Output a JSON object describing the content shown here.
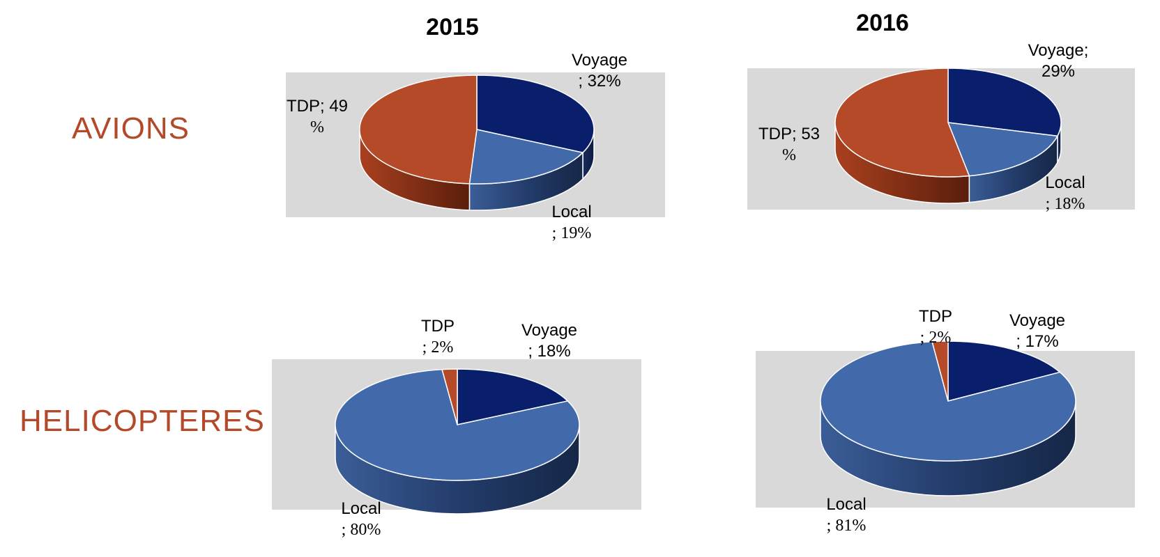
{
  "header": {
    "year_2015": "2015",
    "year_2016": "2016"
  },
  "rows": {
    "avions": "AVIONS",
    "helicopteres": "HELICOPTERES"
  },
  "colors": {
    "voyage": "#0a1f6b",
    "local": "#426aab",
    "tdp": "#b44a27",
    "panel": "#d9d9d9",
    "label_red": "#b4492a"
  },
  "chart_data": [
    {
      "type": "pie",
      "group": "AVIONS",
      "year": "2015",
      "categories": [
        "Voyage",
        "Local",
        "TDP"
      ],
      "values": [
        32,
        19,
        49
      ],
      "labels": [
        {
          "line1": "Voyage",
          "line2": "; 32%"
        },
        {
          "line1": "Local",
          "line2": "; 19%"
        },
        {
          "line1": "TDP; 49",
          "line2": "%"
        }
      ]
    },
    {
      "type": "pie",
      "group": "AVIONS",
      "year": "2016",
      "categories": [
        "Voyage",
        "Local",
        "TDP"
      ],
      "values": [
        29,
        18,
        53
      ],
      "labels": [
        {
          "line1": "Voyage;",
          "line2": "29%"
        },
        {
          "line1": "Local",
          "line2": "; 18%"
        },
        {
          "line1": "TDP; 53",
          "line2": "%"
        }
      ]
    },
    {
      "type": "pie",
      "group": "HELICOPTERES",
      "year": "2015",
      "categories": [
        "Voyage",
        "Local",
        "TDP"
      ],
      "values": [
        18,
        80,
        2
      ],
      "labels": [
        {
          "line1": "Voyage",
          "line2": "; 18%"
        },
        {
          "line1": "Local",
          "line2": "; 80%"
        },
        {
          "line1": "TDP",
          "line2": "; 2%"
        }
      ]
    },
    {
      "type": "pie",
      "group": "HELICOPTERES",
      "year": "2016",
      "categories": [
        "Voyage",
        "Local",
        "TDP"
      ],
      "values": [
        17,
        81,
        2
      ],
      "labels": [
        {
          "line1": "Voyage",
          "line2": "; 17%"
        },
        {
          "line1": "Local",
          "line2": "; 81%"
        },
        {
          "line1": "TDP",
          "line2": "; 2%"
        }
      ]
    }
  ]
}
